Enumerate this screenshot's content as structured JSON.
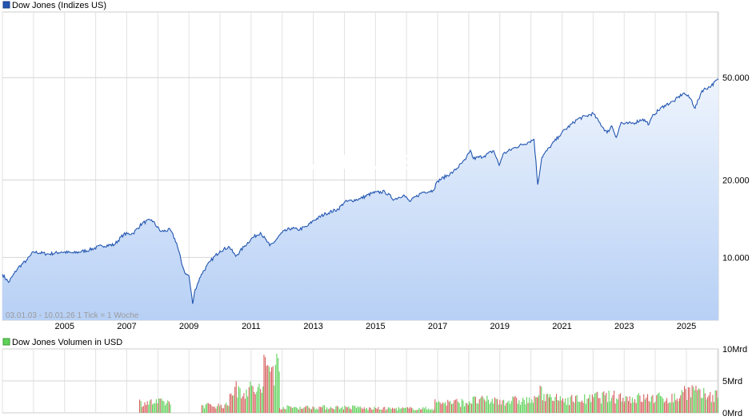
{
  "chart_data": [
    {
      "type": "area",
      "title": "Dow Jones (Indizes US)",
      "info": "03.01.03 - 10.01.26   1 Tick = 1 Woche",
      "watermark": "ARIVA.DE",
      "y_scale": "log",
      "ylim": [
        5700,
        90000
      ],
      "y_ticks": [
        {
          "v": 10000,
          "label": "10.000"
        },
        {
          "v": 20000,
          "label": "20.000"
        },
        {
          "v": 50000,
          "label": "50.000"
        }
      ],
      "xlim": [
        2003.0,
        2026.03
      ],
      "x_ticks": [
        "2005",
        "2007",
        "2009",
        "2011",
        "2013",
        "2015",
        "2017",
        "2019",
        "2021",
        "2023",
        "2025"
      ],
      "grid": true,
      "line_color": "#2255b0",
      "fill_top": "#eef4fd",
      "fill_bottom": "#b7d0f5",
      "x": [
        2003.0,
        2003.2,
        2003.5,
        2003.8,
        2004.0,
        2004.5,
        2004.9,
        2005.3,
        2005.8,
        2006.2,
        2006.6,
        2006.9,
        2007.2,
        2007.5,
        2007.8,
        2008.1,
        2008.4,
        2008.6,
        2008.8,
        2008.9,
        2009.0,
        2009.12,
        2009.2,
        2009.4,
        2009.7,
        2010.0,
        2010.3,
        2010.5,
        2010.8,
        2011.0,
        2011.3,
        2011.6,
        2011.75,
        2012.0,
        2012.3,
        2012.5,
        2012.8,
        2013.0,
        2013.4,
        2013.8,
        2014.0,
        2014.5,
        2014.9,
        2015.3,
        2015.6,
        2015.9,
        2016.1,
        2016.5,
        2016.85,
        2017.0,
        2017.5,
        2017.9,
        2018.05,
        2018.15,
        2018.5,
        2018.8,
        2018.98,
        2019.1,
        2019.5,
        2019.9,
        2020.1,
        2020.22,
        2020.35,
        2020.6,
        2020.9,
        2021.0,
        2021.5,
        2021.8,
        2022.0,
        2022.2,
        2022.45,
        2022.6,
        2022.75,
        2022.9,
        2023.0,
        2023.3,
        2023.6,
        2023.8,
        2023.95,
        2024.3,
        2024.6,
        2024.9,
        2025.0,
        2025.15,
        2025.28,
        2025.5,
        2025.8,
        2026.03
      ],
      "values": [
        8600,
        8000,
        9100,
        9800,
        10500,
        10300,
        10500,
        10400,
        10700,
        11100,
        11200,
        12300,
        12400,
        13600,
        14000,
        12600,
        12800,
        11400,
        9200,
        8600,
        8500,
        6600,
        7500,
        8600,
        9700,
        10600,
        11000,
        10100,
        11100,
        11800,
        12500,
        11100,
        11500,
        12500,
        13000,
        12800,
        13200,
        13900,
        14800,
        15400,
        16400,
        16900,
        17800,
        18000,
        16800,
        17500,
        16500,
        17900,
        18200,
        19800,
        21500,
        24000,
        26100,
        24200,
        24800,
        26000,
        22800,
        25200,
        26800,
        28000,
        28800,
        19200,
        24500,
        26800,
        29600,
        30600,
        34500,
        35500,
        36300,
        33500,
        30500,
        32500,
        29300,
        33500,
        33000,
        33300,
        34500,
        33000,
        36000,
        39000,
        40500,
        43500,
        42800,
        41200,
        38000,
        44500,
        46500,
        49400
      ]
    },
    {
      "type": "bar",
      "title": "Dow Jones Volumen in USD",
      "y_ticks": [
        "10Mrd",
        "5Mrd",
        "0Mrd"
      ],
      "ylim": [
        0,
        10
      ],
      "up_color": "#5fd15a",
      "down_color": "#d86060",
      "segments": [
        {
          "x": [
            2007.4,
            2008.4
          ],
          "level": 1.7
        },
        {
          "x": [
            2009.4,
            2010.3
          ],
          "level": 1.2
        },
        {
          "x": [
            2010.3,
            2011.4
          ],
          "level": 3.8
        },
        {
          "x": [
            2011.4,
            2011.9
          ],
          "level": 7.5
        },
        {
          "x": [
            2011.9,
            2014.5
          ],
          "level": 0.9
        },
        {
          "x": [
            2014.5,
            2016.9
          ],
          "level": 0.7
        },
        {
          "x": [
            2016.9,
            2018.0
          ],
          "level": 1.7
        },
        {
          "x": [
            2018.0,
            2020.2
          ],
          "level": 2.0
        },
        {
          "x": [
            2020.2,
            2020.6
          ],
          "level": 3.3
        },
        {
          "x": [
            2020.6,
            2022.0
          ],
          "level": 2.2
        },
        {
          "x": [
            2022.0,
            2023.0
          ],
          "level": 2.6
        },
        {
          "x": [
            2023.0,
            2024.8
          ],
          "level": 2.4
        },
        {
          "x": [
            2024.8,
            2025.3
          ],
          "level": 3.6
        },
        {
          "x": [
            2025.3,
            2026.03
          ],
          "level": 2.9
        }
      ]
    }
  ]
}
